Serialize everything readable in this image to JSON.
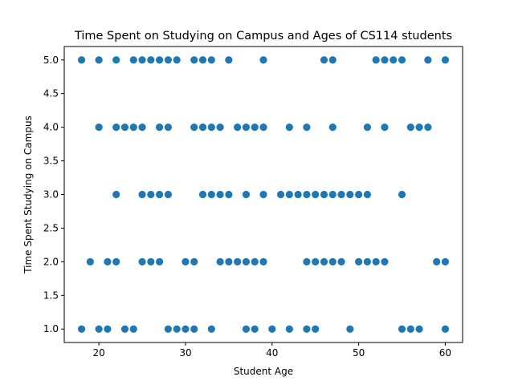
{
  "chart_data": {
    "type": "scatter",
    "title": "Time Spent on Studying on Campus and Ages of CS114 students",
    "xlabel": "Student Age",
    "ylabel": "Time Spent Studying on Campus",
    "xlim": [
      16,
      62
    ],
    "ylim": [
      0.8,
      5.2
    ],
    "xticks": [
      "20",
      "30",
      "40",
      "50",
      "60"
    ],
    "yticks": [
      "1.0",
      "1.5",
      "2.0",
      "2.5",
      "3.0",
      "3.5",
      "4.0",
      "4.5",
      "5.0"
    ],
    "grid": false,
    "marker_color": "#1f77b4",
    "points": [
      {
        "x": 18,
        "y": 5
      },
      {
        "x": 20,
        "y": 5
      },
      {
        "x": 22,
        "y": 5
      },
      {
        "x": 24,
        "y": 5
      },
      {
        "x": 25,
        "y": 5
      },
      {
        "x": 26,
        "y": 5
      },
      {
        "x": 27,
        "y": 5
      },
      {
        "x": 28,
        "y": 5
      },
      {
        "x": 29,
        "y": 5
      },
      {
        "x": 31,
        "y": 5
      },
      {
        "x": 32,
        "y": 5
      },
      {
        "x": 33,
        "y": 5
      },
      {
        "x": 35,
        "y": 5
      },
      {
        "x": 39,
        "y": 5
      },
      {
        "x": 46,
        "y": 5
      },
      {
        "x": 47,
        "y": 5
      },
      {
        "x": 52,
        "y": 5
      },
      {
        "x": 53,
        "y": 5
      },
      {
        "x": 54,
        "y": 5
      },
      {
        "x": 55,
        "y": 5
      },
      {
        "x": 58,
        "y": 5
      },
      {
        "x": 60,
        "y": 5
      },
      {
        "x": 20,
        "y": 4
      },
      {
        "x": 22,
        "y": 4
      },
      {
        "x": 23,
        "y": 4
      },
      {
        "x": 24,
        "y": 4
      },
      {
        "x": 25,
        "y": 4
      },
      {
        "x": 27,
        "y": 4
      },
      {
        "x": 28,
        "y": 4
      },
      {
        "x": 31,
        "y": 4
      },
      {
        "x": 32,
        "y": 4
      },
      {
        "x": 33,
        "y": 4
      },
      {
        "x": 34,
        "y": 4
      },
      {
        "x": 36,
        "y": 4
      },
      {
        "x": 37,
        "y": 4
      },
      {
        "x": 38,
        "y": 4
      },
      {
        "x": 39,
        "y": 4
      },
      {
        "x": 42,
        "y": 4
      },
      {
        "x": 44,
        "y": 4
      },
      {
        "x": 47,
        "y": 4
      },
      {
        "x": 51,
        "y": 4
      },
      {
        "x": 53,
        "y": 4
      },
      {
        "x": 56,
        "y": 4
      },
      {
        "x": 57,
        "y": 4
      },
      {
        "x": 58,
        "y": 4
      },
      {
        "x": 22,
        "y": 3
      },
      {
        "x": 25,
        "y": 3
      },
      {
        "x": 26,
        "y": 3
      },
      {
        "x": 27,
        "y": 3
      },
      {
        "x": 28,
        "y": 3
      },
      {
        "x": 32,
        "y": 3
      },
      {
        "x": 33,
        "y": 3
      },
      {
        "x": 34,
        "y": 3
      },
      {
        "x": 35,
        "y": 3
      },
      {
        "x": 37,
        "y": 3
      },
      {
        "x": 39,
        "y": 3
      },
      {
        "x": 41,
        "y": 3
      },
      {
        "x": 42,
        "y": 3
      },
      {
        "x": 43,
        "y": 3
      },
      {
        "x": 44,
        "y": 3
      },
      {
        "x": 45,
        "y": 3
      },
      {
        "x": 46,
        "y": 3
      },
      {
        "x": 47,
        "y": 3
      },
      {
        "x": 48,
        "y": 3
      },
      {
        "x": 49,
        "y": 3
      },
      {
        "x": 50,
        "y": 3
      },
      {
        "x": 51,
        "y": 3
      },
      {
        "x": 55,
        "y": 3
      },
      {
        "x": 19,
        "y": 2
      },
      {
        "x": 21,
        "y": 2
      },
      {
        "x": 22,
        "y": 2
      },
      {
        "x": 25,
        "y": 2
      },
      {
        "x": 26,
        "y": 2
      },
      {
        "x": 27,
        "y": 2
      },
      {
        "x": 30,
        "y": 2
      },
      {
        "x": 31,
        "y": 2
      },
      {
        "x": 34,
        "y": 2
      },
      {
        "x": 35,
        "y": 2
      },
      {
        "x": 36,
        "y": 2
      },
      {
        "x": 37,
        "y": 2
      },
      {
        "x": 38,
        "y": 2
      },
      {
        "x": 39,
        "y": 2
      },
      {
        "x": 44,
        "y": 2
      },
      {
        "x": 45,
        "y": 2
      },
      {
        "x": 46,
        "y": 2
      },
      {
        "x": 47,
        "y": 2
      },
      {
        "x": 48,
        "y": 2
      },
      {
        "x": 50,
        "y": 2
      },
      {
        "x": 51,
        "y": 2
      },
      {
        "x": 52,
        "y": 2
      },
      {
        "x": 53,
        "y": 2
      },
      {
        "x": 59,
        "y": 2
      },
      {
        "x": 60,
        "y": 2
      },
      {
        "x": 18,
        "y": 1
      },
      {
        "x": 20,
        "y": 1
      },
      {
        "x": 21,
        "y": 1
      },
      {
        "x": 23,
        "y": 1
      },
      {
        "x": 24,
        "y": 1
      },
      {
        "x": 28,
        "y": 1
      },
      {
        "x": 29,
        "y": 1
      },
      {
        "x": 30,
        "y": 1
      },
      {
        "x": 31,
        "y": 1
      },
      {
        "x": 33,
        "y": 1
      },
      {
        "x": 37,
        "y": 1
      },
      {
        "x": 38,
        "y": 1
      },
      {
        "x": 40,
        "y": 1
      },
      {
        "x": 42,
        "y": 1
      },
      {
        "x": 44,
        "y": 1
      },
      {
        "x": 45,
        "y": 1
      },
      {
        "x": 49,
        "y": 1
      },
      {
        "x": 55,
        "y": 1
      },
      {
        "x": 56,
        "y": 1
      },
      {
        "x": 57,
        "y": 1
      },
      {
        "x": 60,
        "y": 1
      }
    ]
  }
}
